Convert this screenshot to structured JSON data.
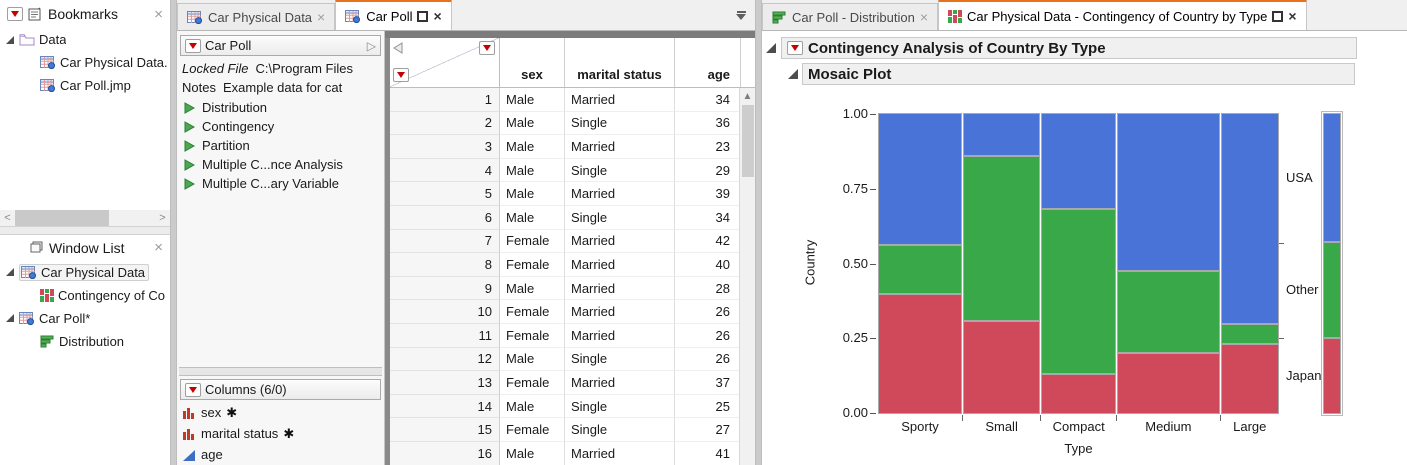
{
  "colors": {
    "accent_orange": "#e8721c",
    "usa_blue": "#4a73d8",
    "other_green": "#39a849",
    "japan_red": "#d0495a",
    "dropdown_red": "#c40000"
  },
  "bookmarks": {
    "title": "Bookmarks",
    "items": [
      {
        "label": "Data",
        "icon": "folder",
        "level": 0,
        "expander": true
      },
      {
        "label": "Car Physical Data.",
        "icon": "datatable",
        "level": 1
      },
      {
        "label": "Car Poll.jmp",
        "icon": "datatable",
        "level": 1
      }
    ]
  },
  "window_list": {
    "title": "Window List",
    "items": [
      {
        "label": "Car Physical Data",
        "icon": "datatable",
        "level": 0,
        "expander": true,
        "selected": true
      },
      {
        "label": "Contingency of Co",
        "icon": "mosaic",
        "level": 1
      },
      {
        "label": "Car Poll*",
        "icon": "datatable",
        "level": 0,
        "expander": true
      },
      {
        "label": "Distribution",
        "icon": "distribution",
        "level": 1
      }
    ]
  },
  "center_tabs": [
    {
      "label": "Car Physical Data",
      "icon": "datatable",
      "active": false,
      "maximize": false,
      "closable": true
    },
    {
      "label": "Car Poll",
      "icon": "datatable",
      "active": true,
      "maximize": true,
      "closable": true
    }
  ],
  "right_tabs": [
    {
      "label": "Car Poll - Distribution",
      "icon": "distribution",
      "active": false,
      "maximize": false,
      "closable": true
    },
    {
      "label": "Car Physical Data - Contingency of Country by Type",
      "icon": "mosaic",
      "active": true,
      "maximize": true,
      "closable": true
    }
  ],
  "side_panel": {
    "title": "Car Poll",
    "properties": [
      {
        "name": "Locked File",
        "value": "C:\\Program Files",
        "italic": true
      },
      {
        "name": "Notes",
        "value": "Example data for cat",
        "italic": false
      }
    ],
    "scripts": [
      "Distribution",
      "Contingency",
      "Partition",
      "Multiple C...nce Analysis",
      "Multiple C...ary Variable"
    ],
    "columns_title": "Columns (6/0)",
    "columns": [
      {
        "name": "sex",
        "type": "nominal",
        "flag": "✱"
      },
      {
        "name": "marital status",
        "type": "nominal",
        "flag": "✱"
      },
      {
        "name": "age",
        "type": "continuous",
        "flag": ""
      }
    ]
  },
  "data_table": {
    "headers": [
      "sex",
      "marital status",
      "age"
    ],
    "rows": [
      [
        1,
        "Male",
        "Married",
        34
      ],
      [
        2,
        "Male",
        "Single",
        36
      ],
      [
        3,
        "Male",
        "Married",
        23
      ],
      [
        4,
        "Male",
        "Single",
        29
      ],
      [
        5,
        "Male",
        "Married",
        39
      ],
      [
        6,
        "Male",
        "Single",
        34
      ],
      [
        7,
        "Female",
        "Married",
        42
      ],
      [
        8,
        "Female",
        "Married",
        40
      ],
      [
        9,
        "Male",
        "Married",
        28
      ],
      [
        10,
        "Female",
        "Married",
        26
      ],
      [
        11,
        "Female",
        "Married",
        26
      ],
      [
        12,
        "Male",
        "Single",
        26
      ],
      [
        13,
        "Female",
        "Married",
        37
      ],
      [
        14,
        "Male",
        "Single",
        25
      ],
      [
        15,
        "Female",
        "Single",
        27
      ],
      [
        16,
        "Male",
        "Married",
        41
      ]
    ]
  },
  "report": {
    "title": "Contingency Analysis of Country By Type",
    "subtitle": "Mosaic Plot"
  },
  "chart_data": {
    "type": "mosaic",
    "title": "Contingency Analysis of Country By Type - Mosaic Plot",
    "xlabel": "Type",
    "ylabel": "Country",
    "categories": [
      "Sporty",
      "Small",
      "Compact",
      "Medium",
      "Large"
    ],
    "category_width_fractions": [
      0.212,
      0.194,
      0.189,
      0.259,
      0.146
    ],
    "stack_order": "top-to-bottom",
    "series": [
      {
        "name": "USA",
        "color": "#4a73d8",
        "values": [
          0.44,
          0.14,
          0.32,
          0.53,
          0.71
        ]
      },
      {
        "name": "Other",
        "color": "#39a849",
        "values": [
          0.16,
          0.55,
          0.55,
          0.27,
          0.06
        ]
      },
      {
        "name": "Japan",
        "color": "#d0495a",
        "values": [
          0.4,
          0.31,
          0.13,
          0.2,
          0.23
        ]
      }
    ],
    "overall_distribution": [
      {
        "name": "USA",
        "value": 0.43
      },
      {
        "name": "Other",
        "value": 0.32
      },
      {
        "name": "Japan",
        "value": 0.25
      }
    ],
    "y_ticks": [
      1.0,
      0.75,
      0.5,
      0.25,
      0.0
    ],
    "y_tick_labels": [
      "1.00",
      "0.75",
      "0.50",
      "0.25",
      "0.00"
    ],
    "right_labels": [
      "USA",
      "Other",
      "Japan"
    ],
    "ylim": [
      0,
      1
    ],
    "grid": false,
    "legend_position": "right-labels"
  }
}
